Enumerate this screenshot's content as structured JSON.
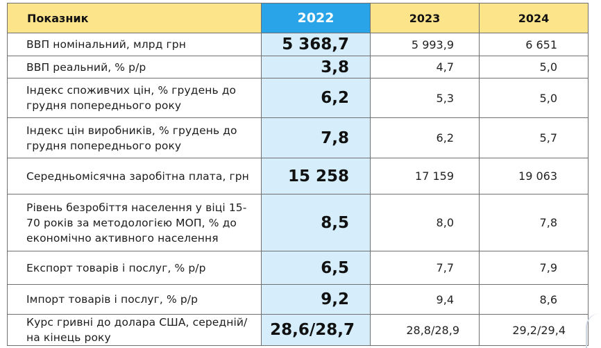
{
  "header": {
    "indicator": "Показник",
    "y2022": "2022",
    "y2023": "2023",
    "y2024": "2024"
  },
  "rows": [
    {
      "label": "ВВП номінальний, млрд грн",
      "v2022": "5 368,7",
      "v2023": "5 993,9",
      "v2024": "6 651"
    },
    {
      "label": "ВВП реальний,  % р/р",
      "v2022": "3,8",
      "v2023": "4,7",
      "v2024": "5,0"
    },
    {
      "label": "Індекс споживчих цін, % грудень до грудня попереднього року",
      "v2022": "6,2",
      "v2023": "5,3",
      "v2024": "5,0"
    },
    {
      "label": "Індекс цін виробників, % грудень до грудня попереднього року",
      "v2022": "7,8",
      "v2023": "6,2",
      "v2024": "5,7"
    },
    {
      "label": "Середньомісячна заробітна плата, грн",
      "v2022": "15 258",
      "v2023": "17 159",
      "v2024": "19 063"
    },
    {
      "label": "Рівень безробіття населення у віці 15-70 років за методологією МОП, % до економічно активного населення",
      "v2022": "8,5",
      "v2023": "8,0",
      "v2024": "7,8"
    },
    {
      "label": "Експорт товарів і послуг, % р/р",
      "v2022": "6,5",
      "v2023": "7,7",
      "v2024": "7,9"
    },
    {
      "label": "Імпорт товарів і послуг, % р/р",
      "v2022": "9,2",
      "v2023": "9,4",
      "v2024": "8,6"
    },
    {
      "label": "Курс гривні до долара США, середній/ на кінець року",
      "v2022": "28,6/28,7",
      "v2023": "28,8/28,9",
      "v2024": "29,2/29,4"
    }
  ]
}
